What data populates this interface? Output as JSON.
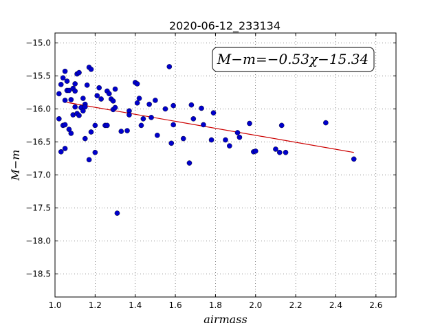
{
  "chart_data": {
    "type": "scatter",
    "title": "2020-06-12_233134",
    "xlabel": "airmass",
    "ylabel": "M−m",
    "xlim": [
      1.0,
      2.7
    ],
    "ylim": [
      -18.85,
      -14.85
    ],
    "y_inverted": true,
    "grid": true,
    "xticks": [
      1.0,
      1.2,
      1.4,
      1.6,
      1.8,
      2.0,
      2.2,
      2.4,
      2.6
    ],
    "xtick_labels": [
      "1.0",
      "1.2",
      "1.4",
      "1.6",
      "1.8",
      "2.0",
      "2.2",
      "2.4",
      "2.6"
    ],
    "yticks": [
      -15.0,
      -15.5,
      -16.0,
      -16.5,
      -17.0,
      -17.5,
      -18.0,
      -18.5
    ],
    "ytick_labels": [
      "−15.0",
      "−15.5",
      "−16.0",
      "−16.5",
      "−17.0",
      "−17.5",
      "−18.0",
      "−18.5"
    ],
    "annotation": "M−m=−0.53χ−15.34",
    "fit": {
      "slope": -0.53,
      "intercept": -15.34,
      "x_range": [
        1.06,
        2.49
      ],
      "color": "#cc0000"
    },
    "point_color": "#0000cc",
    "points": [
      [
        1.02,
        -15.77
      ],
      [
        1.03,
        -15.63
      ],
      [
        1.04,
        -15.53
      ],
      [
        1.05,
        -15.43
      ],
      [
        1.05,
        -15.87
      ],
      [
        1.06,
        -15.58
      ],
      [
        1.06,
        -15.72
      ],
      [
        1.07,
        -15.72
      ],
      [
        1.08,
        -15.86
      ],
      [
        1.09,
        -15.69
      ],
      [
        1.1,
        -15.62
      ],
      [
        1.1,
        -15.73
      ],
      [
        1.11,
        -15.47
      ],
      [
        1.12,
        -15.45
      ],
      [
        1.13,
        -15.98
      ],
      [
        1.14,
        -15.84
      ],
      [
        1.15,
        -15.93
      ],
      [
        1.16,
        -15.64
      ],
      [
        1.17,
        -15.37
      ],
      [
        1.18,
        -15.4
      ],
      [
        1.02,
        -16.15
      ],
      [
        1.04,
        -16.25
      ],
      [
        1.05,
        -16.24
      ],
      [
        1.07,
        -16.31
      ],
      [
        1.08,
        -16.37
      ],
      [
        1.09,
        -16.09
      ],
      [
        1.1,
        -15.97
      ],
      [
        1.11,
        -16.07
      ],
      [
        1.12,
        -16.1
      ],
      [
        1.14,
        -16.03
      ],
      [
        1.15,
        -15.97
      ],
      [
        1.03,
        -16.65
      ],
      [
        1.05,
        -16.6
      ],
      [
        1.15,
        -16.45
      ],
      [
        1.17,
        -16.77
      ],
      [
        1.18,
        -16.35
      ],
      [
        1.2,
        -16.25
      ],
      [
        1.2,
        -16.66
      ],
      [
        1.21,
        -15.8
      ],
      [
        1.22,
        -15.68
      ],
      [
        1.23,
        -15.85
      ],
      [
        1.25,
        -16.25
      ],
      [
        1.26,
        -15.73
      ],
      [
        1.26,
        -16.25
      ],
      [
        1.27,
        -15.77
      ],
      [
        1.28,
        -15.85
      ],
      [
        1.29,
        -16.01
      ],
      [
        1.29,
        -15.88
      ],
      [
        1.3,
        -15.7
      ],
      [
        1.3,
        -15.98
      ],
      [
        1.31,
        -17.58
      ],
      [
        1.33,
        -16.34
      ],
      [
        1.36,
        -16.33
      ],
      [
        1.37,
        -16.03
      ],
      [
        1.37,
        -16.09
      ],
      [
        1.4,
        -15.6
      ],
      [
        1.41,
        -15.62
      ],
      [
        1.41,
        -15.91
      ],
      [
        1.42,
        -15.84
      ],
      [
        1.43,
        -16.25
      ],
      [
        1.44,
        -16.15
      ],
      [
        1.47,
        -15.93
      ],
      [
        1.48,
        -16.13
      ],
      [
        1.5,
        -15.87
      ],
      [
        1.51,
        -16.4
      ],
      [
        1.55,
        -16.0
      ],
      [
        1.57,
        -15.36
      ],
      [
        1.58,
        -16.52
      ],
      [
        1.59,
        -16.24
      ],
      [
        1.59,
        -15.95
      ],
      [
        1.64,
        -16.45
      ],
      [
        1.67,
        -16.82
      ],
      [
        1.68,
        -15.94
      ],
      [
        1.69,
        -16.15
      ],
      [
        1.73,
        -15.99
      ],
      [
        1.74,
        -16.24
      ],
      [
        1.78,
        -16.47
      ],
      [
        1.79,
        -16.06
      ],
      [
        1.85,
        -16.47
      ],
      [
        1.87,
        -16.56
      ],
      [
        1.91,
        -16.36
      ],
      [
        1.92,
        -16.43
      ],
      [
        1.97,
        -16.22
      ],
      [
        1.99,
        -16.65
      ],
      [
        2.0,
        -16.64
      ],
      [
        2.1,
        -16.61
      ],
      [
        2.12,
        -16.66
      ],
      [
        2.13,
        -16.25
      ],
      [
        2.15,
        -16.66
      ],
      [
        2.35,
        -16.21
      ],
      [
        2.49,
        -16.76
      ]
    ]
  }
}
